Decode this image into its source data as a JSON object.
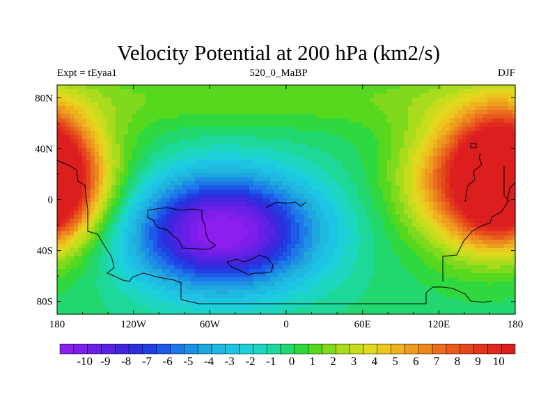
{
  "chart_data": {
    "type": "heatmap",
    "title": "Velocity Potential at 200 hPa (km2/s)",
    "left_label": "Expt = tEyaa1",
    "center_label": "520_0_MaBP",
    "right_label": "DJF",
    "x_ticks": [
      "180",
      "120W",
      "60W",
      "0",
      "60E",
      "120E",
      "180"
    ],
    "x_tick_values": [
      -180,
      -120,
      -60,
      0,
      60,
      120,
      180
    ],
    "y_ticks": [
      "80N",
      "40N",
      "0",
      "40S",
      "80S"
    ],
    "y_tick_values": [
      80,
      40,
      0,
      -40,
      -80
    ],
    "xlim": [
      -180,
      180
    ],
    "ylim": [
      -90,
      90
    ],
    "colorbar": {
      "levels": [
        "-10",
        "-9",
        "-8",
        "-7",
        "-6",
        "-5",
        "-4",
        "-3",
        "-2",
        "-1",
        "0",
        "1",
        "2",
        "3",
        "4",
        "5",
        "6",
        "7",
        "8",
        "9",
        "10"
      ],
      "min": -10.5,
      "max": 10.5,
      "colors": [
        "#8c1ef0",
        "#7d1eeb",
        "#6c1fe6",
        "#5a22e4",
        "#4425df",
        "#2d2edc",
        "#2040e4",
        "#1e5ae8",
        "#1e78e8",
        "#1c90e4",
        "#1ea8de",
        "#1eb8e0",
        "#1ec4e4",
        "#1ccfd8",
        "#1cd6c0",
        "#1ed89a",
        "#22d86e",
        "#30d840",
        "#56d81e",
        "#80d91c",
        "#a8dc1c",
        "#c8dc1e",
        "#e0d81e",
        "#ecc81e",
        "#eeb21e",
        "#ee9c1e",
        "#ec861e",
        "#ea6e1e",
        "#e85a1c",
        "#e6461c",
        "#e2361c",
        "#e0281e",
        "#dc1e1e"
      ]
    },
    "field_centers": [
      {
        "lon": -50,
        "lat": -25,
        "value": -10.6,
        "sx": 52,
        "sy": 32
      },
      {
        "lon": 160,
        "lat": 15,
        "value": 10.6,
        "sx": 42,
        "sy": 36
      },
      {
        "lon": -190,
        "lat": 18,
        "value": 10.2,
        "sx": 22,
        "sy": 30
      }
    ]
  }
}
